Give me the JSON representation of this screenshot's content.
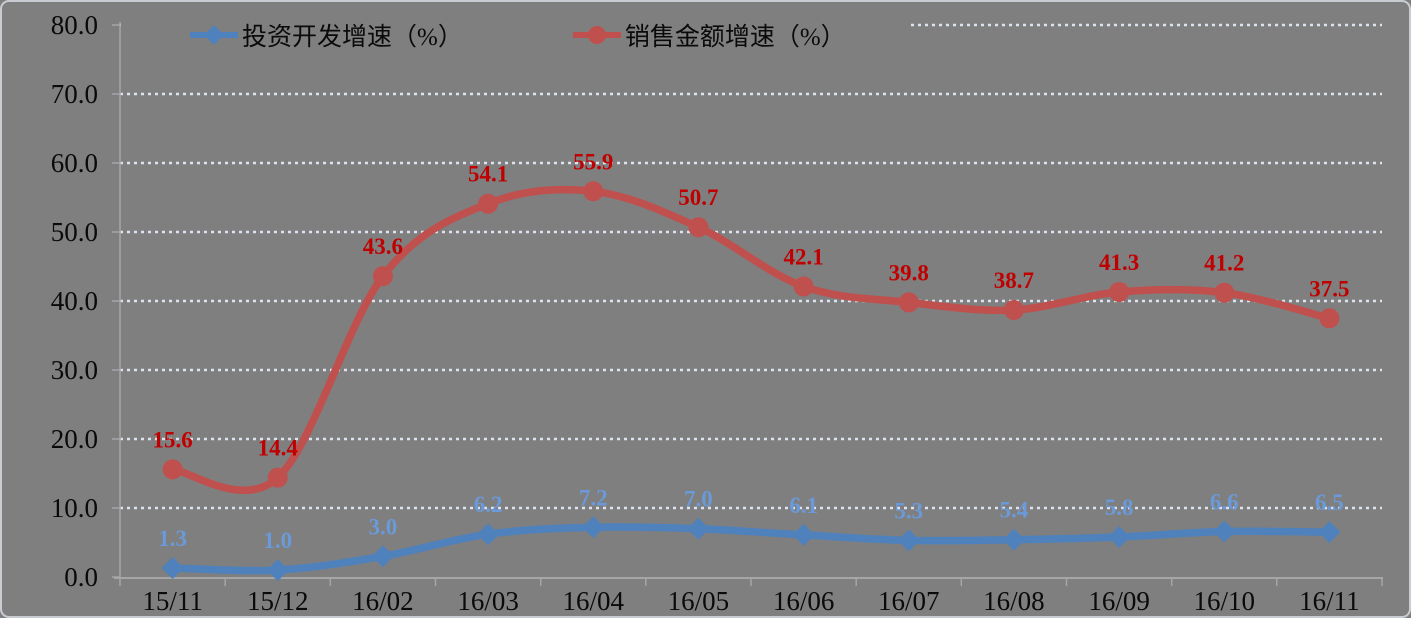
{
  "chart_data": {
    "type": "line",
    "title": "",
    "categories": [
      "15/11",
      "15/12",
      "16/02",
      "16/03",
      "16/04",
      "16/05",
      "16/06",
      "16/07",
      "16/08",
      "16/09",
      "16/10",
      "16/11"
    ],
    "series": [
      {
        "name": "投资开发增速（%）",
        "values": [
          1.3,
          1.0,
          3.0,
          6.2,
          7.2,
          7.0,
          6.1,
          5.3,
          5.4,
          5.8,
          6.6,
          6.5
        ],
        "data_labels": [
          "1.3",
          "1.0",
          "3.0",
          "6.2",
          "7.2",
          "7.0",
          "6.1",
          "5.3",
          "5.4",
          "5.8",
          "6.6",
          "6.5"
        ],
        "color": "#4F81BD",
        "label_color": "#6A9AD9",
        "marker": "diamond"
      },
      {
        "name": "销售金额增速（%）",
        "values": [
          15.6,
          14.4,
          43.6,
          54.1,
          55.9,
          50.7,
          42.1,
          39.8,
          38.7,
          41.3,
          41.2,
          37.5
        ],
        "data_labels": [
          "15.6",
          "14.4",
          "43.6",
          "54.1",
          "55.9",
          "50.7",
          "42.1",
          "39.8",
          "38.7",
          "41.3",
          "41.2",
          "37.5"
        ],
        "color": "#C0504D",
        "label_color": "#C00000",
        "marker": "circle"
      }
    ],
    "xlabel": "",
    "ylabel": "",
    "ylim": [
      0,
      80
    ],
    "ytick_step": 10,
    "ytick_labels": [
      "0.0",
      "10.0",
      "20.0",
      "30.0",
      "40.0",
      "50.0",
      "60.0",
      "70.0",
      "80.0"
    ],
    "grid": "horizontal-dotted-major",
    "legend_position": "top-inside",
    "smooth": true,
    "background_color": "#7F7F7F",
    "gridline_color": "#DDE3EF",
    "axis_color": "#A6A6A6",
    "text_color": "#0A0A0A"
  }
}
